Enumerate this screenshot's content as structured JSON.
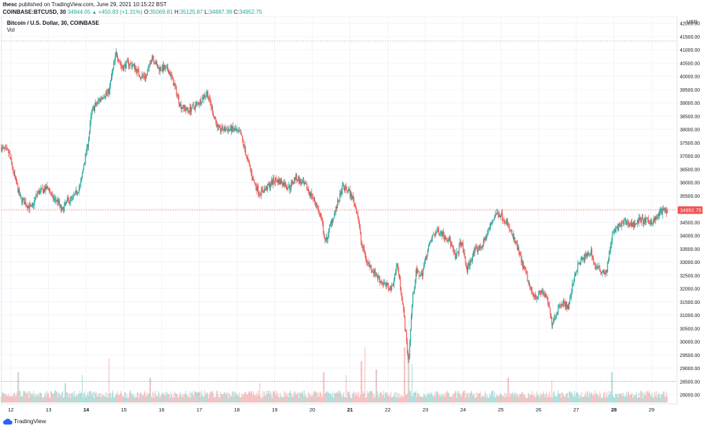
{
  "header": {
    "author": "thesc",
    "published_text": "published on TradingView.com, June 29, 2021 10:15:22 BST",
    "symbol": "COINBASE:BTCUSD, 30",
    "last": "34944.05",
    "change_icon": "triangle-up-icon",
    "change": "+450.83 (+1.31%)",
    "o_label": "O:",
    "o_value": "35069.81",
    "h_label": "H:",
    "h_value": "35125.87",
    "l_label": "L:",
    "l_value": "34887.39",
    "c_label": "C:",
    "c_value": "34952.75"
  },
  "pane": {
    "title": "Bitcoin / U.S. Dollar, 30, COINBASE",
    "volume_label": "Vol",
    "currency": "USD",
    "price_tag": "34952.75"
  },
  "footer": {
    "logo_icon": "tradingview-cloud-icon",
    "brand": "TradingView"
  },
  "colors": {
    "up": "#26a69a",
    "down": "#ef5350",
    "price_tag": "#ef5350",
    "grid": "#f0f3fa"
  },
  "chart_data": {
    "type": "candlestick",
    "interval": "30",
    "currency": "USD",
    "price_axis": {
      "ylim": [
        27650,
        42250
      ],
      "ticks": [
        28000,
        28500,
        29000,
        29500,
        30000,
        30500,
        31000,
        31500,
        32000,
        32500,
        33000,
        33500,
        34000,
        34500,
        35000,
        35500,
        36000,
        36500,
        37000,
        37500,
        38000,
        38500,
        39000,
        39500,
        40000,
        40500,
        41000,
        41500,
        42000
      ],
      "tick_labels": [
        "28000.00",
        "28500.00",
        "29000.00",
        "29500.00",
        "30000.00",
        "30500.00",
        "31000.00",
        "31500.00",
        "32000.00",
        "32500.00",
        "33000.00",
        "33500.00",
        "34000.00",
        "34500.00",
        "35000.00",
        "35500.00",
        "36000.00",
        "36500.00",
        "37000.00",
        "37500.00",
        "38000.00",
        "38500.00",
        "39000.00",
        "39500.00",
        "40000.00",
        "40500.00",
        "41000.00",
        "41500.00",
        "42000.00"
      ]
    },
    "time_axis": {
      "start_day": 11.75,
      "end_day": 29.42,
      "tick_days": [
        12,
        13,
        14,
        15,
        16,
        17,
        18,
        19,
        20,
        21,
        22,
        23,
        24,
        25,
        26,
        27,
        28,
        29
      ],
      "tick_labels": [
        "12",
        "13",
        "14",
        "15",
        "16",
        "17",
        "18",
        "19",
        "20",
        "21",
        "22",
        "23",
        "24",
        "25",
        "26",
        "27",
        "28",
        "29"
      ],
      "bold_days": [
        14,
        21,
        28
      ]
    },
    "dashed_levels": [
      41330,
      34952.75
    ],
    "volume_dashed_level_fraction": 0.38,
    "price_path": [
      [
        11.75,
        37300
      ],
      [
        11.95,
        37100
      ],
      [
        12.1,
        36200
      ],
      [
        12.25,
        35400
      ],
      [
        12.4,
        35200
      ],
      [
        12.55,
        35000
      ],
      [
        12.7,
        35600
      ],
      [
        12.85,
        35700
      ],
      [
        13.0,
        35800
      ],
      [
        13.1,
        35400
      ],
      [
        13.25,
        35300
      ],
      [
        13.35,
        34900
      ],
      [
        13.5,
        35300
      ],
      [
        13.65,
        35400
      ],
      [
        13.85,
        35900
      ],
      [
        13.95,
        36800
      ],
      [
        14.05,
        37500
      ],
      [
        14.15,
        38700
      ],
      [
        14.3,
        39000
      ],
      [
        14.45,
        39300
      ],
      [
        14.6,
        39400
      ],
      [
        14.7,
        40200
      ],
      [
        14.8,
        40900
      ],
      [
        14.95,
        40300
      ],
      [
        15.1,
        40500
      ],
      [
        15.25,
        40400
      ],
      [
        15.45,
        40000
      ],
      [
        15.6,
        40000
      ],
      [
        15.75,
        40800
      ],
      [
        15.9,
        40300
      ],
      [
        16.05,
        40300
      ],
      [
        16.2,
        40200
      ],
      [
        16.35,
        39600
      ],
      [
        16.5,
        38900
      ],
      [
        16.7,
        38700
      ],
      [
        16.9,
        38900
      ],
      [
        17.05,
        39100
      ],
      [
        17.2,
        39400
      ],
      [
        17.35,
        38700
      ],
      [
        17.5,
        38000
      ],
      [
        17.7,
        38000
      ],
      [
        17.9,
        38000
      ],
      [
        18.1,
        37800
      ],
      [
        18.25,
        37000
      ],
      [
        18.45,
        36000
      ],
      [
        18.6,
        35600
      ],
      [
        18.8,
        35800
      ],
      [
        19.0,
        36100
      ],
      [
        19.2,
        36000
      ],
      [
        19.4,
        35800
      ],
      [
        19.55,
        36200
      ],
      [
        19.7,
        36000
      ],
      [
        19.85,
        35800
      ],
      [
        20.1,
        35200
      ],
      [
        20.25,
        34500
      ],
      [
        20.35,
        33700
      ],
      [
        20.5,
        34500
      ],
      [
        20.65,
        35100
      ],
      [
        20.8,
        35800
      ],
      [
        20.95,
        35700
      ],
      [
        21.1,
        35300
      ],
      [
        21.2,
        34800
      ],
      [
        21.3,
        33700
      ],
      [
        21.45,
        33000
      ],
      [
        21.6,
        32700
      ],
      [
        21.8,
        32300
      ],
      [
        21.95,
        32100
      ],
      [
        22.1,
        32000
      ],
      [
        22.25,
        32900
      ],
      [
        22.35,
        32000
      ],
      [
        22.45,
        30700
      ],
      [
        22.55,
        29200
      ],
      [
        22.65,
        31500
      ],
      [
        22.75,
        32600
      ],
      [
        22.9,
        32500
      ],
      [
        23.05,
        33400
      ],
      [
        23.2,
        34000
      ],
      [
        23.35,
        34200
      ],
      [
        23.5,
        34000
      ],
      [
        23.65,
        33800
      ],
      [
        23.8,
        33100
      ],
      [
        23.95,
        33800
      ],
      [
        24.1,
        32700
      ],
      [
        24.3,
        33400
      ],
      [
        24.5,
        33600
      ],
      [
        24.65,
        34100
      ],
      [
        24.85,
        34800
      ],
      [
        25.0,
        34800
      ],
      [
        25.15,
        34500
      ],
      [
        25.3,
        34000
      ],
      [
        25.45,
        33500
      ],
      [
        25.55,
        33000
      ],
      [
        25.7,
        32400
      ],
      [
        25.8,
        31900
      ],
      [
        25.95,
        31700
      ],
      [
        26.1,
        31900
      ],
      [
        26.25,
        31500
      ],
      [
        26.35,
        30700
      ],
      [
        26.45,
        31000
      ],
      [
        26.6,
        31500
      ],
      [
        26.8,
        31300
      ],
      [
        26.95,
        32500
      ],
      [
        27.1,
        33000
      ],
      [
        27.25,
        33200
      ],
      [
        27.4,
        33400
      ],
      [
        27.5,
        32800
      ],
      [
        27.65,
        32700
      ],
      [
        27.8,
        32600
      ],
      [
        27.95,
        34000
      ],
      [
        28.1,
        34300
      ],
      [
        28.3,
        34500
      ],
      [
        28.5,
        34400
      ],
      [
        28.7,
        34600
      ],
      [
        28.9,
        34500
      ],
      [
        29.1,
        34600
      ],
      [
        29.25,
        34900
      ],
      [
        29.42,
        34952
      ]
    ],
    "volume_spikes": [
      [
        12.2,
        0.55
      ],
      [
        13.45,
        0.35
      ],
      [
        13.9,
        0.5
      ],
      [
        14.6,
        0.8
      ],
      [
        15.7,
        0.45
      ],
      [
        18.6,
        0.35
      ],
      [
        20.3,
        0.55
      ],
      [
        20.9,
        0.5
      ],
      [
        21.3,
        0.75
      ],
      [
        21.4,
        1.0
      ],
      [
        21.7,
        0.6
      ],
      [
        22.45,
        1.0
      ],
      [
        22.55,
        0.9
      ],
      [
        22.65,
        0.7
      ],
      [
        25.2,
        0.45
      ],
      [
        26.35,
        0.4
      ],
      [
        27.95,
        0.55
      ]
    ]
  }
}
